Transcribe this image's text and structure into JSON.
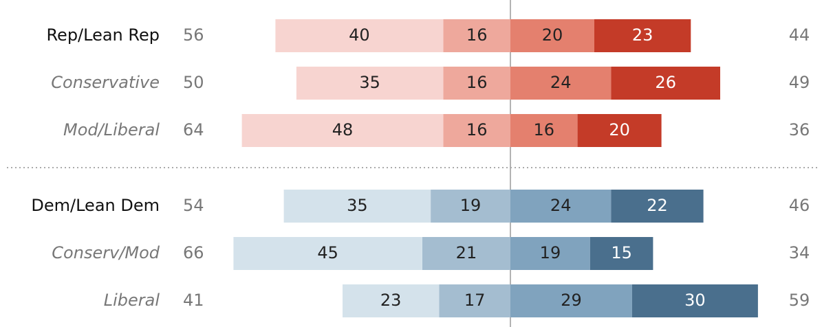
{
  "chart_data": [
    {
      "type": "diverging_bar",
      "categories": [
        "Rep/Lean Rep",
        "Conservative",
        "Mod/Liberal"
      ],
      "left_totals": [
        56,
        50,
        64
      ],
      "right_totals": [
        44,
        49,
        36
      ],
      "series": [
        {
          "color": "#f7d4d0",
          "values": [
            40,
            35,
            48
          ]
        },
        {
          "color": "#eea89c",
          "values": [
            16,
            16,
            16
          ]
        },
        {
          "color": "#e4806e",
          "values": [
            20,
            24,
            16
          ]
        },
        {
          "color": "#c43b28",
          "values": [
            23,
            26,
            20
          ]
        }
      ]
    },
    {
      "type": "diverging_bar",
      "categories": [
        "Dem/Lean Dem",
        "Conserv/Mod",
        "Liberal"
      ],
      "left_totals": [
        54,
        66,
        41
      ],
      "right_totals": [
        46,
        34,
        59
      ],
      "series": [
        {
          "color": "#d4e2eb",
          "values": [
            35,
            45,
            23
          ]
        },
        {
          "color": "#a4bdd0",
          "values": [
            19,
            21,
            17
          ]
        },
        {
          "color": "#80a3be",
          "values": [
            24,
            19,
            29
          ]
        },
        {
          "color": "#4a6f8d",
          "values": [
            22,
            15,
            30
          ]
        }
      ]
    }
  ]
}
